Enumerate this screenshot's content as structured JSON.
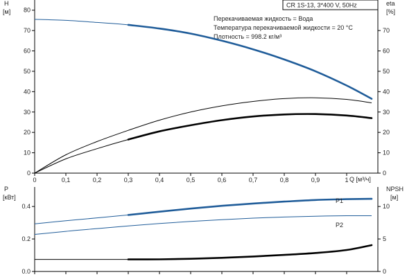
{
  "header": {
    "pump": "CR 1S-13, 3*400 V, 50Hz"
  },
  "info": [
    "Перекачиваемая жидкость = Вода",
    "Температура перекачиваемой жидкости = 20 °C",
    "Плотность = 998.2 кг/м³"
  ],
  "chart_data": [
    {
      "type": "line",
      "panel": "top",
      "x_axis": {
        "label": "Q [м³/ч]",
        "range": [
          0,
          1.1
        ],
        "ticks": [
          0,
          0.1,
          0.2,
          0.3,
          0.4,
          0.5,
          0.6,
          0.7,
          0.8,
          0.9,
          1.0
        ]
      },
      "y_left": {
        "label_lines": [
          "H",
          "[м]"
        ],
        "range": [
          0,
          85
        ],
        "ticks": [
          0,
          10,
          20,
          30,
          40,
          50,
          60,
          70,
          80
        ]
      },
      "y_right": {
        "label_lines": [
          "eta",
          "[%]"
        ],
        "range": [
          0,
          85
        ],
        "ticks": [
          0,
          10,
          20,
          30,
          40,
          50,
          60,
          70
        ]
      },
      "grid": false,
      "series": [
        {
          "axis": "left",
          "color": "#1f5c99",
          "style": "thin-then-thick",
          "thick_from": 0.3,
          "x": [
            0,
            0.1,
            0.2,
            0.3,
            0.4,
            0.5,
            0.6,
            0.7,
            0.8,
            0.9,
            1.0,
            1.08
          ],
          "y": [
            75.5,
            75,
            74,
            72.8,
            71,
            68.5,
            65,
            60.8,
            55.8,
            50,
            43,
            36.5
          ]
        },
        {
          "axis": "right",
          "color": "#000000",
          "style": "thin",
          "x": [
            0,
            0.1,
            0.2,
            0.3,
            0.4,
            0.5,
            0.6,
            0.7,
            0.8,
            0.9,
            1.0,
            1.08
          ],
          "y": [
            0,
            9,
            15.5,
            21,
            26,
            30,
            33,
            35.2,
            36.6,
            37,
            36.2,
            34.5
          ]
        },
        {
          "axis": "right",
          "color": "#000000",
          "style": "thin-then-thick",
          "thick_from": 0.3,
          "x": [
            0,
            0.1,
            0.2,
            0.3,
            0.4,
            0.5,
            0.6,
            0.7,
            0.8,
            0.9,
            1.0,
            1.08
          ],
          "y": [
            0,
            7,
            12,
            16.5,
            20.5,
            23.5,
            26,
            27.8,
            28.8,
            29,
            28.3,
            27
          ]
        }
      ]
    },
    {
      "type": "line",
      "panel": "bottom",
      "x_axis": {
        "range": [
          0,
          1.1
        ]
      },
      "y_left": {
        "label_lines": [
          "P",
          "[кВт]"
        ],
        "range": [
          0,
          0.52
        ],
        "ticks": [
          0.0,
          0.2,
          0.4
        ]
      },
      "y_right": {
        "label_lines": [
          "NPSH",
          "[м]"
        ],
        "range": [
          0,
          13
        ],
        "ticks": [
          0,
          5,
          10
        ]
      },
      "grid": false,
      "series": [
        {
          "name": "P1",
          "axis": "left",
          "color": "#1f5c99",
          "style": "thin-then-thick",
          "thick_from": 0.3,
          "x": [
            0,
            0.1,
            0.2,
            0.3,
            0.4,
            0.5,
            0.6,
            0.7,
            0.8,
            0.9,
            1.0,
            1.08
          ],
          "y": [
            0.293,
            0.312,
            0.33,
            0.348,
            0.368,
            0.387,
            0.404,
            0.418,
            0.43,
            0.44,
            0.445,
            0.447
          ]
        },
        {
          "name": "P2",
          "axis": "left",
          "color": "#1f5c99",
          "style": "thin",
          "x": [
            0,
            0.1,
            0.2,
            0.3,
            0.4,
            0.5,
            0.6,
            0.7,
            0.8,
            0.9,
            1.0,
            1.08
          ],
          "y": [
            0.228,
            0.247,
            0.264,
            0.28,
            0.295,
            0.308,
            0.319,
            0.328,
            0.335,
            0.34,
            0.343,
            0.343
          ]
        },
        {
          "axis": "right",
          "color": "#000000",
          "style": "thin-then-thick",
          "thick_from": 0.3,
          "x": [
            0,
            0.1,
            0.2,
            0.3,
            0.4,
            0.5,
            0.6,
            0.7,
            0.8,
            0.9,
            1.0,
            1.08
          ],
          "y": [
            1.85,
            1.85,
            1.85,
            1.85,
            1.87,
            1.95,
            2.1,
            2.3,
            2.55,
            2.85,
            3.3,
            4.05
          ]
        }
      ]
    }
  ]
}
